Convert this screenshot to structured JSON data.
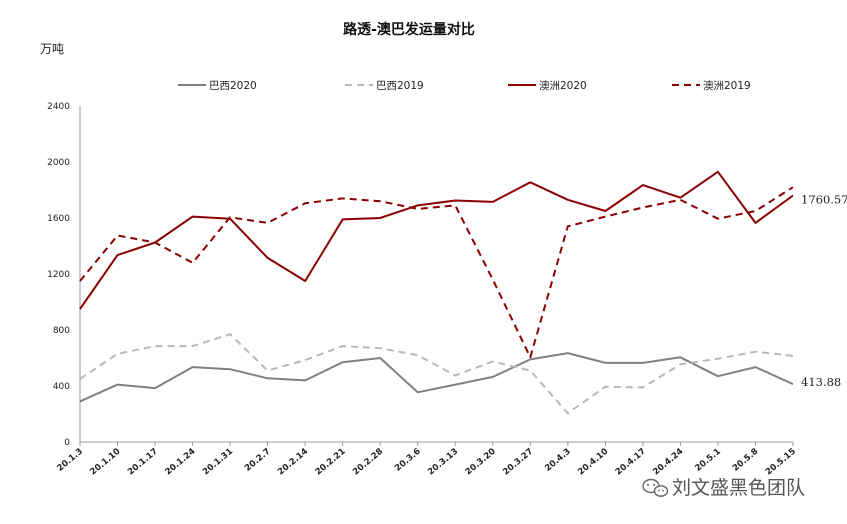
{
  "chart_data": {
    "type": "line",
    "title": "路透-澳巴发运量对比",
    "ylabel": "万吨",
    "xlabel": "",
    "ylim": [
      0,
      2400
    ],
    "yticks": [
      0,
      400,
      800,
      1200,
      1600,
      2000,
      2400
    ],
    "categories": [
      "20.1.3",
      "20.1.10",
      "20.1.17",
      "20.1.24",
      "20.1.31",
      "20.2.7",
      "20.2.14",
      "20.2.21",
      "20.2.28",
      "20.3.6",
      "20.3.13",
      "20.3.20",
      "20.3.27",
      "20.4.3",
      "20.4.10",
      "20.4.17",
      "20.4.24",
      "20.5.1",
      "20.5.8",
      "20.5.15"
    ],
    "series": [
      {
        "name": "巴西2020",
        "color": "#808080",
        "dash": false,
        "values": [
          290,
          410,
          385,
          535,
          520,
          455,
          440,
          570,
          600,
          355,
          410,
          465,
          590,
          635,
          565,
          565,
          605,
          470,
          535,
          413.88
        ]
      },
      {
        "name": "巴西2019",
        "color": "#b8b8b8",
        "dash": true,
        "values": [
          450,
          630,
          685,
          685,
          770,
          510,
          585,
          685,
          670,
          620,
          475,
          575,
          510,
          205,
          395,
          390,
          555,
          595,
          645,
          615
        ]
      },
      {
        "name": "澳洲2020",
        "color": "#8b0000",
        "dash": false,
        "values": [
          950,
          1335,
          1425,
          1610,
          1595,
          1315,
          1150,
          1590,
          1600,
          1690,
          1725,
          1715,
          1855,
          1730,
          1650,
          1835,
          1745,
          1930,
          1565,
          1760.57
        ]
      },
      {
        "name": "澳洲2019",
        "color": "#8b0000",
        "dash": true,
        "values": [
          1150,
          1475,
          1425,
          1280,
          1605,
          1565,
          1705,
          1740,
          1720,
          1665,
          1690,
          1160,
          605,
          1540,
          1610,
          1675,
          1730,
          1595,
          1650,
          1820
        ]
      }
    ],
    "annotations": [
      {
        "series": 2,
        "text": "1760.57"
      },
      {
        "series": 0,
        "text": "413.88"
      }
    ],
    "legend": "top",
    "grid": false
  },
  "watermark": "刘文盛黑色团队",
  "watermark_icon": "wechat-icon"
}
